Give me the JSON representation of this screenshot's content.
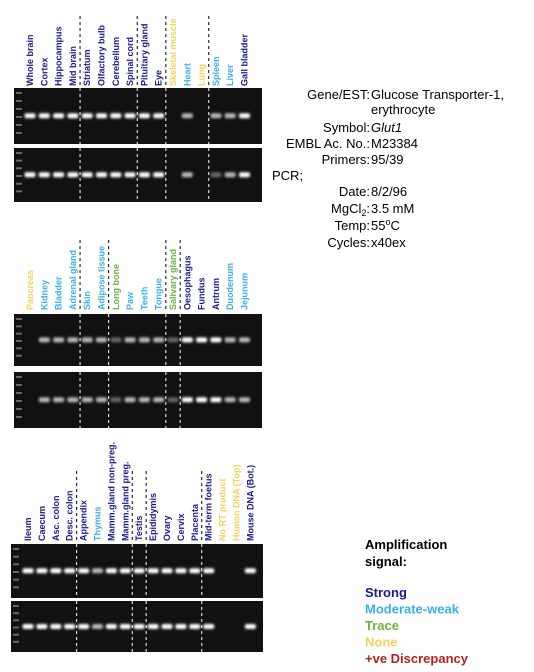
{
  "panels": [
    {
      "lanes": [
        {
          "label": "Whole brain",
          "color": "#1a1a8a"
        },
        {
          "label": "Cortex",
          "color": "#1a1a8a"
        },
        {
          "label": "Hippocampus",
          "color": "#1a1a8a"
        },
        {
          "label": "Mid brain",
          "color": "#1a1a8a"
        },
        {
          "label": "Striatum",
          "color": "#1a1a8a"
        },
        {
          "label": "Olfactory bulb",
          "color": "#1a1a8a"
        },
        {
          "label": "Cerebellum",
          "color": "#1a1a8a"
        },
        {
          "label": "Spinal cord",
          "color": "#1a1a8a"
        },
        {
          "label": "Pituitary gland",
          "color": "#1a1a8a"
        },
        {
          "label": "Eye",
          "color": "#1a1a8a"
        },
        {
          "label": "Skeletal muscle",
          "color": "#f2d35a"
        },
        {
          "label": "Heart",
          "color": "#3ab0e8"
        },
        {
          "label": "Lung",
          "color": "#f2d35a"
        },
        {
          "label": "Spleen",
          "color": "#3ab0e8"
        },
        {
          "label": "Liver",
          "color": "#3ab0e8"
        },
        {
          "label": "Gall bladder",
          "color": "#1a1a8a"
        }
      ]
    },
    {
      "lanes": [
        {
          "label": "Pancreas",
          "color": "#f2d35a"
        },
        {
          "label": "Kidney",
          "color": "#3ab0e8"
        },
        {
          "label": "Bladder",
          "color": "#3ab0e8"
        },
        {
          "label": "Adrenal gland",
          "color": "#3ab0e8"
        },
        {
          "label": "Skin",
          "color": "#3ab0e8"
        },
        {
          "label": "Adipose tissue",
          "color": "#3ab0e8"
        },
        {
          "label": "Long bone",
          "color": "#6cb33f"
        },
        {
          "label": "Paw",
          "color": "#3ab0e8"
        },
        {
          "label": "Teeth",
          "color": "#3ab0e8"
        },
        {
          "label": "Tongue",
          "color": "#3ab0e8"
        },
        {
          "label": "Salivary gland",
          "color": "#6cb33f"
        },
        {
          "label": "Oesophagus",
          "color": "#1a1a8a"
        },
        {
          "label": "Fundus",
          "color": "#1a1a8a"
        },
        {
          "label": "Antrum",
          "color": "#1a1a8a"
        },
        {
          "label": "Duodenum",
          "color": "#3ab0e8"
        },
        {
          "label": "Jejunum",
          "color": "#3ab0e8"
        }
      ]
    },
    {
      "lanes": [
        {
          "label": "Ileum",
          "color": "#1a1a8a"
        },
        {
          "label": "Caecum",
          "color": "#1a1a8a"
        },
        {
          "label": "Asc. colon",
          "color": "#1a1a8a"
        },
        {
          "label": "Desc. colon",
          "color": "#1a1a8a"
        },
        {
          "label": "Appendix",
          "color": "#1a1a8a"
        },
        {
          "label": "Thymus",
          "color": "#3ab0e8"
        },
        {
          "label": "Mamm.gland non-preg.",
          "color": "#1a1a8a"
        },
        {
          "label": "Mamm.gland preg.",
          "color": "#1a1a8a"
        },
        {
          "label": "Testis",
          "color": "#1a1a8a"
        },
        {
          "label": "Epididymis",
          "color": "#1a1a8a"
        },
        {
          "label": "Ovary",
          "color": "#1a1a8a"
        },
        {
          "label": "Cervix",
          "color": "#1a1a8a"
        },
        {
          "label": "Placenta",
          "color": "#1a1a8a"
        },
        {
          "label": "Mid-term foetus",
          "color": "#1a1a8a"
        },
        {
          "label": "No RT product",
          "color": "#f2d35a"
        },
        {
          "label": "Human DNA (Top)",
          "color": "#f2d35a"
        },
        {
          "label": "Mouse DNA (Bot.)",
          "color": "#1a1a8a"
        }
      ]
    }
  ],
  "info": {
    "gene_label": "Gene/EST:",
    "gene_value_1": "Glucose Transporter-1,",
    "gene_value_2": "erythrocyte",
    "symbol_label": "Symbol:",
    "symbol_value": "Glut1",
    "embl_label": "EMBL Ac. No.:",
    "embl_value": "M23384",
    "primers_label": "Primers:",
    "primers_value": "95/39",
    "pcr_label": "PCR;",
    "date_label": "Date:",
    "date_value": "8/2/96",
    "mg_label": "MgCl",
    "mg_sub": "2",
    "mg_colon": ":",
    "mg_value": "3.5 mM",
    "temp_label": "Temp:",
    "temp_value": "55",
    "temp_sup": "o",
    "temp_unit": "C",
    "cycles_label": "Cycles:",
    "cycles_value": "x40ex"
  },
  "legend": {
    "title_1": "Amplification",
    "title_2": "signal:",
    "items": [
      {
        "label": "Strong",
        "color": "#1a1a8a"
      },
      {
        "label": "Moderate-weak",
        "color": "#3ab0e8"
      },
      {
        "label": "Trace",
        "color": "#6cb33f"
      },
      {
        "label": "None",
        "color": "#f2d35a"
      },
      {
        "label": "+ve Discrepancy",
        "color": "#b22222"
      }
    ]
  }
}
